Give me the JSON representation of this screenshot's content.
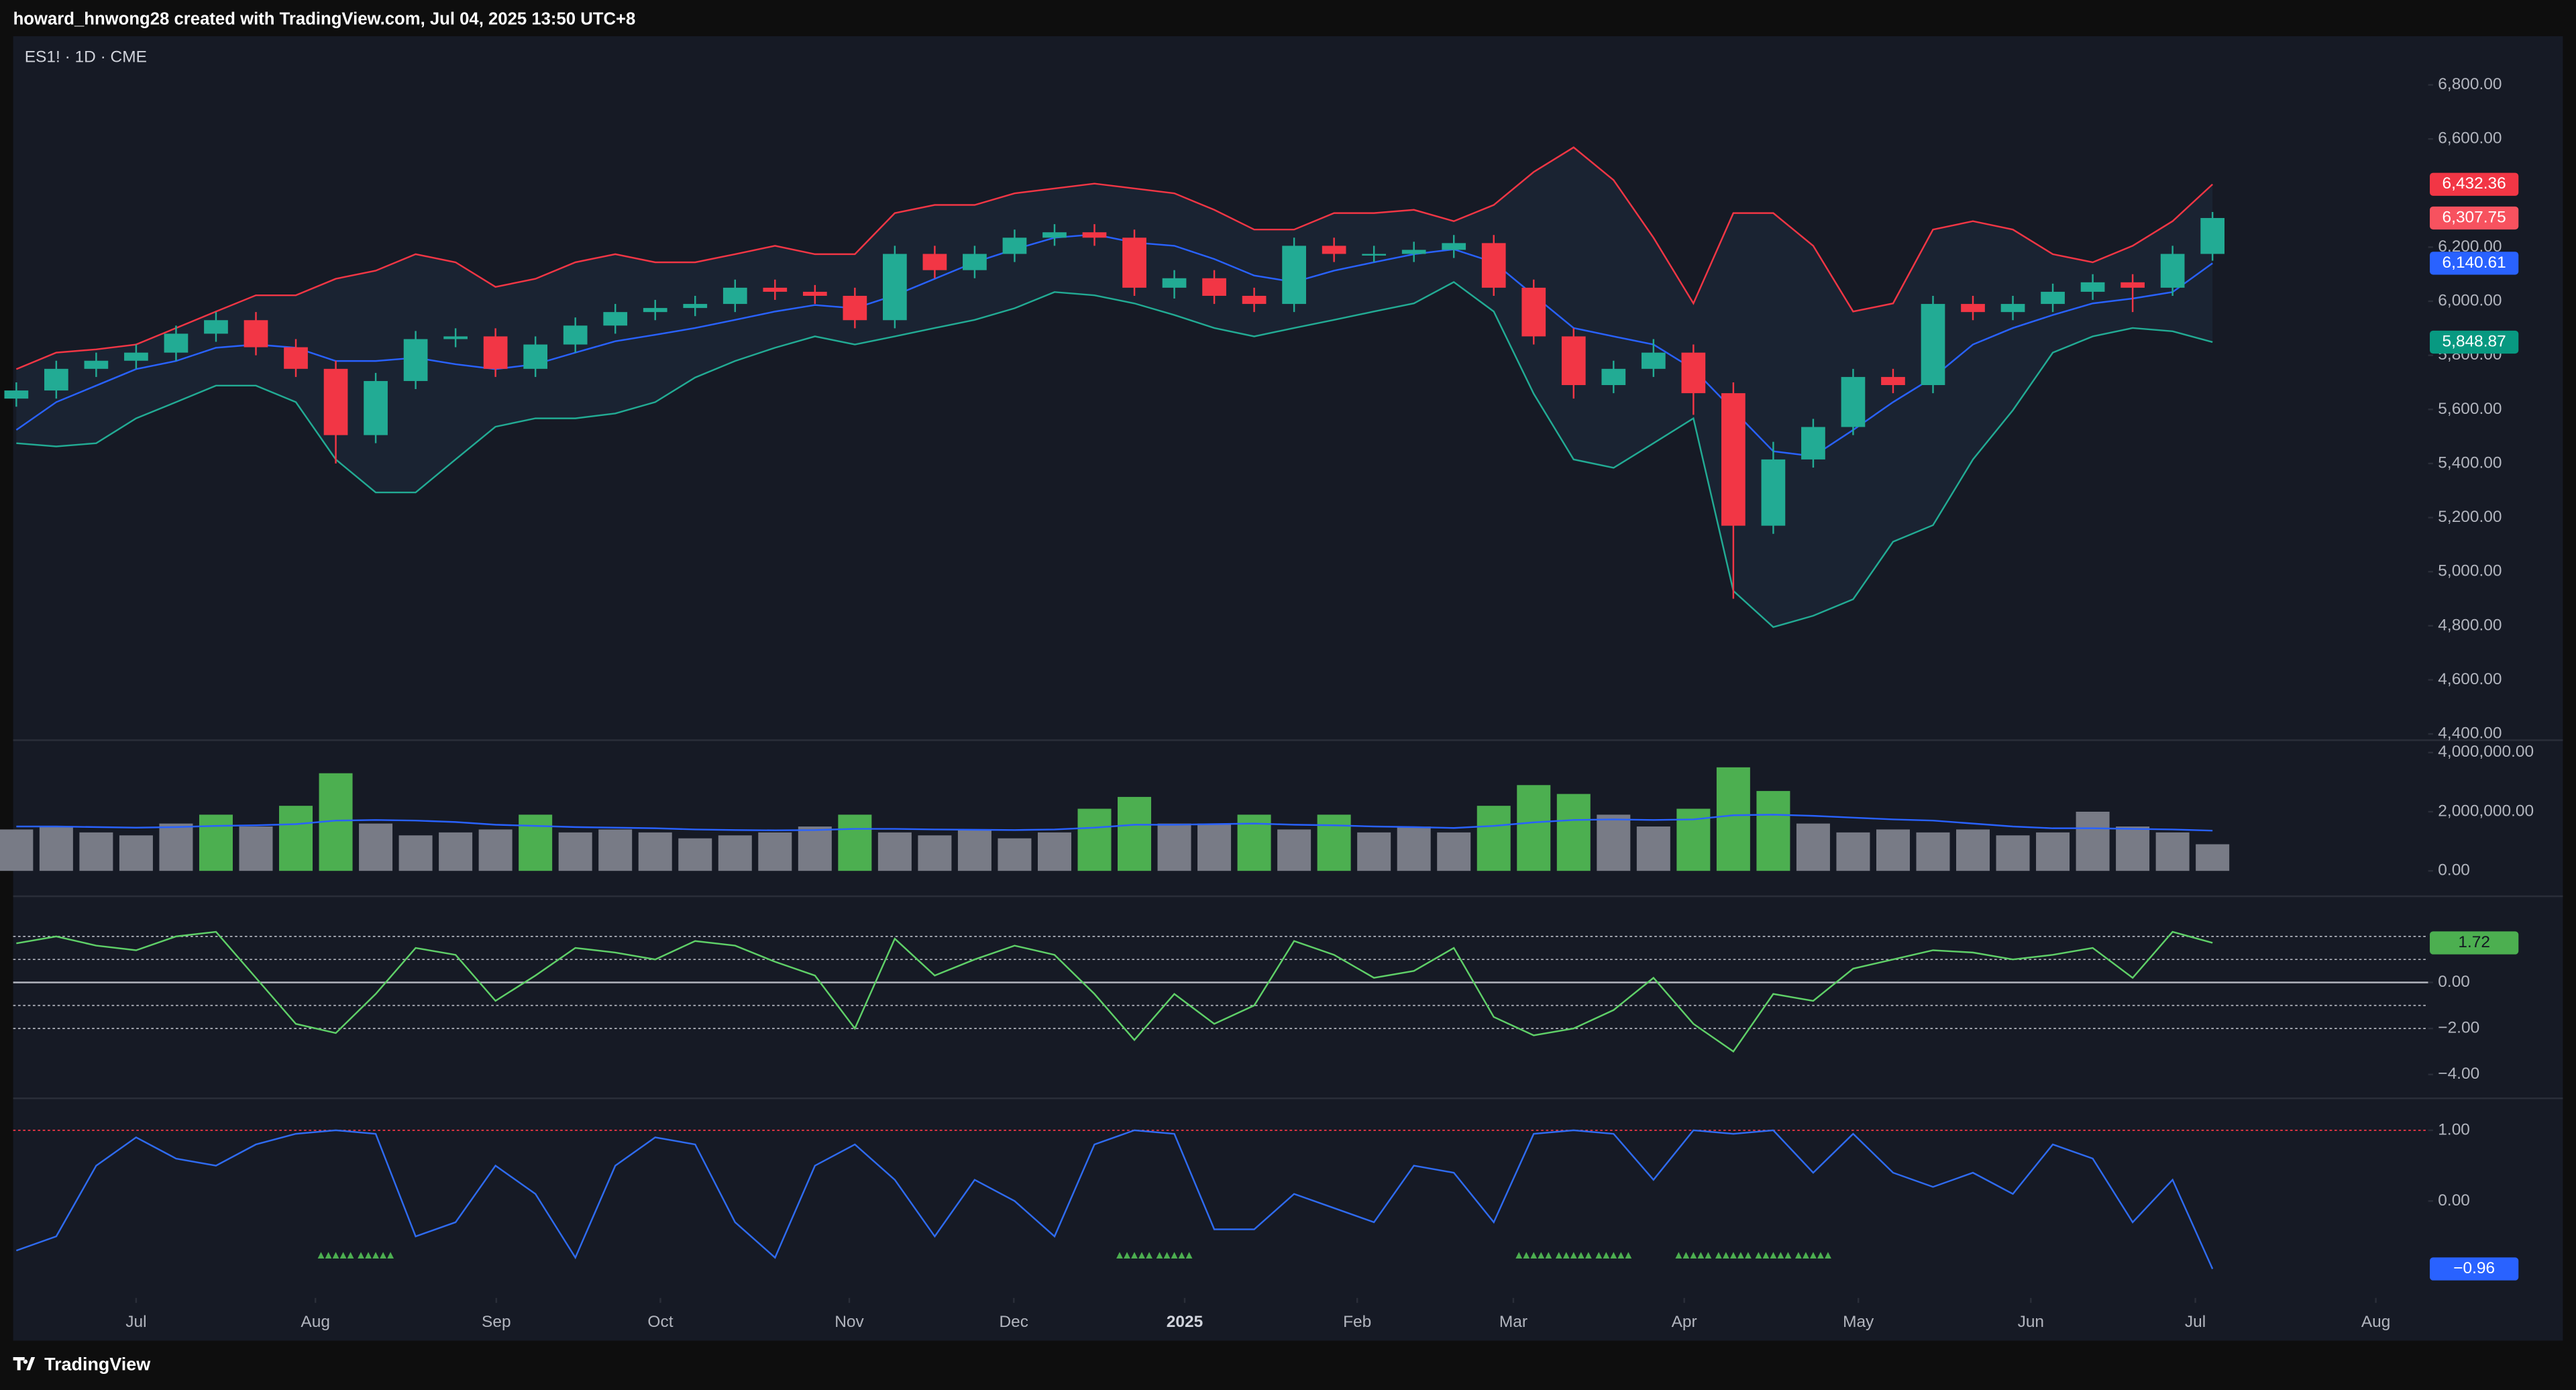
{
  "header": {
    "text": "howard_hnwong28 created with TradingView.com, Jul 04, 2025 13:50 UTC+8"
  },
  "footer": {
    "brand": "TradingView"
  },
  "chart_data": [
    {
      "type": "candlestick",
      "title": "ES1! · 1D · CME",
      "up_color": "#22ab94",
      "down_color": "#f23645",
      "open": [
        5640,
        5670,
        5750,
        5780,
        5810,
        5880,
        5930,
        5830,
        5750,
        5505,
        5705,
        5860,
        5870,
        5750,
        5840,
        5910,
        5960,
        5975,
        5990,
        6050,
        6035,
        6020,
        5930,
        6175,
        6115,
        6175,
        6235,
        6255,
        6235,
        6050,
        6085,
        6020,
        5990,
        6205,
        6175,
        6175,
        6190,
        6215,
        6050,
        5870,
        5690,
        5750,
        5810,
        5660,
        5170,
        5415,
        5535,
        5720,
        5690,
        5990,
        5960,
        5990,
        6035,
        6070,
        6050,
        6175
      ],
      "high": [
        5700,
        5780,
        5810,
        5840,
        5910,
        5960,
        5960,
        5860,
        5780,
        5735,
        5890,
        5900,
        5900,
        5870,
        5940,
        5990,
        6005,
        6020,
        6080,
        6080,
        6060,
        6050,
        6205,
        6205,
        6205,
        6265,
        6285,
        6285,
        6265,
        6115,
        6115,
        6050,
        6235,
        6235,
        6205,
        6220,
        6245,
        6245,
        6080,
        5900,
        5780,
        5860,
        5840,
        5700,
        5480,
        5565,
        5750,
        5750,
        6020,
        6020,
        6020,
        6065,
        6100,
        6100,
        6205,
        6330
      ],
      "low": [
        5610,
        5640,
        5720,
        5750,
        5780,
        5850,
        5800,
        5720,
        5400,
        5475,
        5675,
        5830,
        5720,
        5720,
        5810,
        5880,
        5930,
        5945,
        5960,
        6005,
        5990,
        5900,
        5900,
        6085,
        6085,
        6145,
        6205,
        6205,
        6020,
        6010,
        5990,
        5960,
        5960,
        6145,
        6145,
        6145,
        6160,
        6020,
        5840,
        5640,
        5660,
        5720,
        5580,
        4900,
        5140,
        5385,
        5505,
        5660,
        5660,
        5930,
        5930,
        5960,
        6005,
        5960,
        6020,
        6150
      ],
      "close": [
        5670,
        5750,
        5780,
        5810,
        5880,
        5930,
        5830,
        5750,
        5505,
        5705,
        5860,
        5870,
        5750,
        5840,
        5910,
        5960,
        5975,
        5990,
        6050,
        6035,
        6020,
        5930,
        6175,
        6115,
        6175,
        6235,
        6255,
        6235,
        6050,
        6085,
        6020,
        5990,
        6205,
        6175,
        6175,
        6190,
        6215,
        6050,
        5870,
        5690,
        5750,
        5810,
        5660,
        5170,
        5415,
        5535,
        5720,
        5690,
        5990,
        5960,
        5990,
        6035,
        6070,
        6050,
        6175,
        6307.75
      ],
      "upper": {
        "color": "#f23645",
        "values": [
          5749,
          5810,
          5822,
          5840,
          5901,
          5962,
          6022,
          6022,
          6083,
          6113,
          6174,
          6144,
          6053,
          6083,
          6144,
          6174,
          6144,
          6144,
          6174,
          6205,
          6174,
          6174,
          6326,
          6356,
          6356,
          6399,
          6417,
          6435,
          6417,
          6399,
          6338,
          6265,
          6265,
          6326,
          6326,
          6338,
          6296,
          6356,
          6478,
          6569,
          6448,
          6235,
          5992,
          6326,
          6326,
          6205,
          5962,
          5992,
          6265,
          6296,
          6265,
          6174,
          6144,
          6205,
          6296,
          6432.36
        ]
      },
      "middle": {
        "color": "#2962ff",
        "values": [
          5524,
          5627,
          5688,
          5749,
          5779,
          5828,
          5840,
          5828,
          5779,
          5779,
          5791,
          5767,
          5749,
          5767,
          5810,
          5852,
          5876,
          5901,
          5931,
          5962,
          5986,
          5974,
          6022,
          6083,
          6144,
          6192,
          6235,
          6247,
          6217,
          6205,
          6156,
          6095,
          6071,
          6113,
          6144,
          6174,
          6192,
          6144,
          6022,
          5901,
          5870,
          5840,
          5749,
          5597,
          5445,
          5427,
          5524,
          5627,
          5718,
          5840,
          5901,
          5949,
          5992,
          6010,
          6034,
          6140.61
        ]
      },
      "lower": {
        "color": "#22ab94",
        "values": [
          5475,
          5463,
          5475,
          5567,
          5627,
          5688,
          5688,
          5627,
          5415,
          5293,
          5293,
          5415,
          5536,
          5567,
          5567,
          5585,
          5627,
          5718,
          5779,
          5828,
          5870,
          5840,
          5870,
          5901,
          5931,
          5974,
          6034,
          6022,
          5992,
          5949,
          5901,
          5870,
          5901,
          5931,
          5962,
          5992,
          6071,
          5962,
          5658,
          5415,
          5384,
          5475,
          5567,
          4929,
          4795,
          4837,
          4898,
          5111,
          5172,
          5415,
          5597,
          5810,
          5870,
          5901,
          5889,
          5848.87
        ]
      },
      "band_fill": "#1a2332",
      "ylim": [
        4380,
        6980
      ],
      "yticks": [
        {
          "value": 4400,
          "label": "4,400.00"
        },
        {
          "value": 4600,
          "label": "4,600.00"
        },
        {
          "value": 4800,
          "label": "4,800.00"
        },
        {
          "value": 5000,
          "label": "5,000.00"
        },
        {
          "value": 5200,
          "label": "5,200.00"
        },
        {
          "value": 5400,
          "label": "5,400.00"
        },
        {
          "value": 5600,
          "label": "5,600.00"
        },
        {
          "value": 5800,
          "label": "5,800.00"
        },
        {
          "value": 6000,
          "label": "6,000.00"
        },
        {
          "value": 6200,
          "label": "6,200.00"
        },
        {
          "value": 6600,
          "label": "6,600.00"
        },
        {
          "value": 6800,
          "label": "6,800.00"
        }
      ],
      "tags": [
        {
          "value": 6432.36,
          "label": "6,432.36",
          "color": "#f23645"
        },
        {
          "value": 6307.75,
          "label": "6,307.75",
          "color": "#f7525f"
        },
        {
          "value": 6140.61,
          "label": "6,140.61",
          "color": "#2962ff"
        },
        {
          "value": 5848.87,
          "label": "5,848.87",
          "color": "#089981"
        }
      ]
    },
    {
      "type": "bar",
      "color": "#787b86",
      "highlight_color": "#4caf50",
      "highlighted": [
        5,
        7,
        8,
        13,
        21,
        27,
        28,
        31,
        33,
        37,
        38,
        39,
        42,
        43,
        44
      ],
      "values": [
        1400000,
        1500000,
        1300000,
        1200000,
        1600000,
        1900000,
        1500000,
        2200000,
        3300000,
        1600000,
        1200000,
        1300000,
        1400000,
        1900000,
        1300000,
        1400000,
        1300000,
        1100000,
        1200000,
        1300000,
        1500000,
        1900000,
        1300000,
        1200000,
        1400000,
        1100000,
        1300000,
        2100000,
        2500000,
        1600000,
        1600000,
        1900000,
        1400000,
        1900000,
        1300000,
        1500000,
        1300000,
        2200000,
        2900000,
        2600000,
        1900000,
        1500000,
        2100000,
        3500000,
        2700000,
        1600000,
        1300000,
        1400000,
        1300000,
        1400000,
        1200000,
        1300000,
        2000000,
        1500000,
        1300000,
        900000
      ],
      "average": {
        "color": "#2962ff",
        "values": [
          1500000,
          1500000,
          1480000,
          1460000,
          1480000,
          1520000,
          1540000,
          1580000,
          1700000,
          1720000,
          1700000,
          1650000,
          1560000,
          1520000,
          1480000,
          1460000,
          1440000,
          1400000,
          1380000,
          1370000,
          1380000,
          1420000,
          1420000,
          1400000,
          1390000,
          1380000,
          1400000,
          1460000,
          1560000,
          1560000,
          1580000,
          1600000,
          1560000,
          1540000,
          1500000,
          1480000,
          1450000,
          1520000,
          1640000,
          1720000,
          1740000,
          1720000,
          1740000,
          1880000,
          1900000,
          1860000,
          1800000,
          1740000,
          1700000,
          1600000,
          1500000,
          1440000,
          1440000,
          1420000,
          1400000,
          1360000
        ]
      },
      "ylim": [
        -830000,
        4390000
      ],
      "yticks": [
        {
          "value": 0,
          "label": "0.00"
        },
        {
          "value": 2000000,
          "label": "2,000,000.00"
        },
        {
          "value": 4000000,
          "label": "4,000,000.00"
        }
      ]
    },
    {
      "type": "line",
      "color": "#5fd068",
      "values": [
        1.7,
        2.0,
        1.6,
        1.4,
        2.0,
        2.2,
        0.2,
        -1.8,
        -2.2,
        -0.5,
        1.5,
        1.2,
        -0.8,
        0.3,
        1.5,
        1.3,
        1.0,
        1.8,
        1.6,
        0.9,
        0.3,
        -2.0,
        1.9,
        0.3,
        1.0,
        1.6,
        1.2,
        -0.5,
        -2.5,
        -0.5,
        -1.8,
        -1.0,
        1.8,
        1.2,
        0.2,
        0.5,
        1.5,
        -1.5,
        -2.3,
        -2.0,
        -1.2,
        0.2,
        -1.8,
        -3.0,
        -0.5,
        -0.8,
        0.6,
        1.0,
        1.4,
        1.3,
        1.0,
        1.2,
        1.5,
        0.2,
        2.2,
        1.72
      ],
      "levels": [
        2,
        1,
        0,
        -1,
        -2
      ],
      "level_color": "#b2b5be",
      "ylim": [
        -5,
        3.71
      ],
      "yticks": [
        {
          "value": 0,
          "label": "0.00"
        },
        {
          "value": -2,
          "label": "−2.00"
        },
        {
          "value": -4,
          "label": "−4.00"
        }
      ],
      "tags": [
        {
          "value": 1.72,
          "label": "1.72",
          "color": "#4caf50"
        }
      ]
    },
    {
      "type": "line",
      "color": "#2f6bf0",
      "values": [
        -0.7,
        -0.5,
        0.5,
        0.9,
        0.6,
        0.5,
        0.8,
        0.95,
        1.0,
        0.95,
        -0.5,
        -0.3,
        0.5,
        0.1,
        -0.8,
        0.5,
        0.9,
        0.8,
        -0.3,
        -0.8,
        0.5,
        0.8,
        0.3,
        -0.5,
        0.3,
        0.0,
        -0.5,
        0.8,
        1.0,
        0.95,
        -0.4,
        -0.4,
        0.1,
        -0.1,
        -0.3,
        0.5,
        0.4,
        -0.3,
        0.95,
        1.0,
        0.95,
        0.3,
        1.0,
        0.95,
        1.0,
        0.4,
        0.95,
        0.4,
        0.2,
        0.4,
        0.1,
        0.8,
        0.6,
        -0.3,
        0.3,
        -0.96
      ],
      "levels": [
        1
      ],
      "level_color": "#f23645",
      "signals": [
        8,
        9,
        28,
        29,
        38,
        39,
        40,
        42,
        43,
        44,
        45
      ],
      "signal_color": "#4caf50",
      "ylim": [
        -1.37,
        1.44
      ],
      "yticks": [
        {
          "value": 0,
          "label": "0.00"
        },
        {
          "value": 1,
          "label": "1.00"
        }
      ],
      "tags": [
        {
          "value": -0.96,
          "label": "−0.96",
          "color": "#2962ff"
        }
      ],
      "xlim": [
        -0.08,
        60.4
      ],
      "xticks": [
        {
          "value": 3.0,
          "label": "Jul"
        },
        {
          "value": 7.49,
          "label": "Aug"
        },
        {
          "value": 12.02,
          "label": "Sep"
        },
        {
          "value": 16.13,
          "label": "Oct"
        },
        {
          "value": 20.86,
          "label": "Nov"
        },
        {
          "value": 24.98,
          "label": "Dec"
        },
        {
          "value": 29.26,
          "label": "2025"
        },
        {
          "value": 33.58,
          "label": "Feb"
        },
        {
          "value": 37.49,
          "label": "Mar"
        },
        {
          "value": 41.77,
          "label": "Apr"
        },
        {
          "value": 46.13,
          "label": "May"
        },
        {
          "value": 50.45,
          "label": "Jun"
        },
        {
          "value": 54.57,
          "label": "Jul"
        },
        {
          "value": 59.09,
          "label": "Aug"
        }
      ]
    }
  ]
}
